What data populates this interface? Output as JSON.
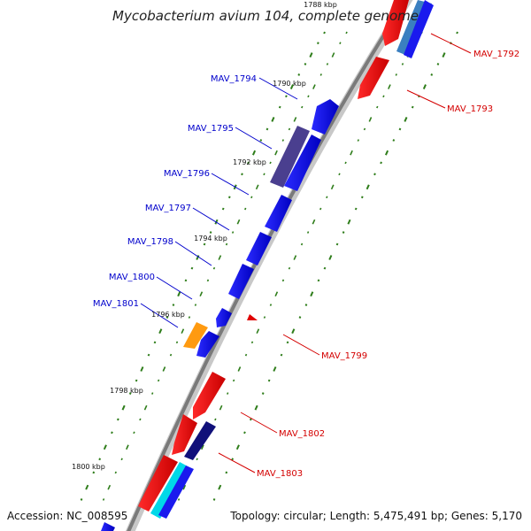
{
  "title": "Mycobacterium avium 104, complete genome",
  "footer": {
    "accession": "Accession: NC_008595",
    "summary": "Topology: circular; Length: 5,475,491 bp; Genes: 5,170"
  },
  "colors": {
    "forward_label": "#d40000",
    "reverse_label": "#0000cc",
    "backbone": "#7a7a7a",
    "gc_dots": "#2e7d1a"
  },
  "ticks": [
    {
      "label": "1788 kbp"
    },
    {
      "label": "1790 kbp"
    },
    {
      "label": "1792 kbp"
    },
    {
      "label": "1794 kbp"
    },
    {
      "label": "1796 kbp"
    },
    {
      "label": "1798 kbp"
    },
    {
      "label": "1800 kbp"
    }
  ],
  "genes": [
    {
      "id": "MAV_1792",
      "strand": "forward"
    },
    {
      "id": "MAV_1793",
      "strand": "forward"
    },
    {
      "id": "MAV_1794",
      "strand": "reverse"
    },
    {
      "id": "MAV_1795",
      "strand": "reverse"
    },
    {
      "id": "MAV_1796",
      "strand": "reverse"
    },
    {
      "id": "MAV_1797",
      "strand": "reverse"
    },
    {
      "id": "MAV_1798",
      "strand": "reverse"
    },
    {
      "id": "MAV_1800",
      "strand": "reverse"
    },
    {
      "id": "MAV_1801",
      "strand": "reverse"
    },
    {
      "id": "MAV_1799",
      "strand": "forward"
    },
    {
      "id": "MAV_1802",
      "strand": "forward"
    },
    {
      "id": "MAV_1803",
      "strand": "forward"
    }
  ]
}
